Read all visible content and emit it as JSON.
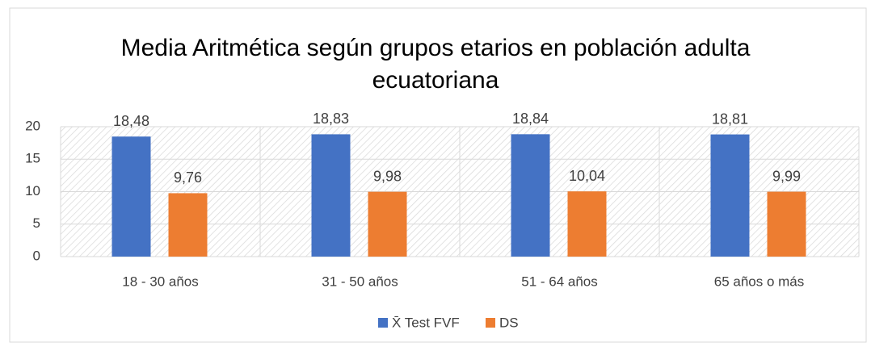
{
  "chart_data": {
    "type": "bar",
    "title": "Media Aritmética según grupos etarios en población adulta ecuatoriana",
    "categories": [
      "18 - 30 años",
      "31 - 50 años",
      "51 - 64 años",
      "65 años o más"
    ],
    "series": [
      {
        "name": "X̄ Test FVF",
        "color": "#4472c4",
        "values": [
          18.48,
          18.83,
          18.84,
          18.81
        ],
        "value_labels": [
          "18,48",
          "18,83",
          "18,84",
          "18,81"
        ]
      },
      {
        "name": "DS",
        "color": "#ed7d31",
        "values": [
          9.76,
          9.98,
          10.04,
          9.99
        ],
        "value_labels": [
          "9,76",
          "9,98",
          "10,04",
          "9,99"
        ]
      }
    ],
    "ylim": [
      0,
      20
    ],
    "yticks": [
      0,
      5,
      10,
      15,
      20
    ],
    "grid": true,
    "legend": "bottom"
  }
}
